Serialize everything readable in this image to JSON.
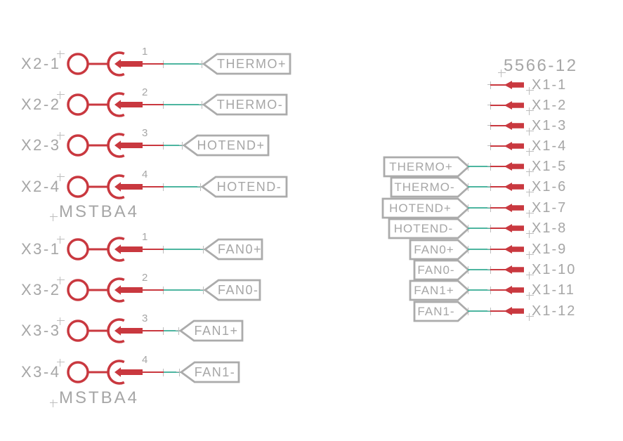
{
  "schematic": {
    "left_connectors": [
      {
        "part": "MSTBA4",
        "pins": [
          {
            "name": "X2-1",
            "number": "1",
            "net": "THERMO+"
          },
          {
            "name": "X2-2",
            "number": "2",
            "net": "THERMO-"
          },
          {
            "name": "X2-3",
            "number": "3",
            "net": "HOTEND+"
          },
          {
            "name": "X2-4",
            "number": "4",
            "net": "HOTEND-"
          }
        ]
      },
      {
        "part": "MSTBA4",
        "pins": [
          {
            "name": "X3-1",
            "number": "1",
            "net": "FAN0+"
          },
          {
            "name": "X3-2",
            "number": "2",
            "net": "FAN0-"
          },
          {
            "name": "X3-3",
            "number": "3",
            "net": "FAN1+"
          },
          {
            "name": "X3-4",
            "number": "4",
            "net": "FAN1-"
          }
        ]
      }
    ],
    "right_connector": {
      "part": "5566-12",
      "pins": [
        {
          "name": "X1-1",
          "net": ""
        },
        {
          "name": "X1-2",
          "net": ""
        },
        {
          "name": "X1-3",
          "net": ""
        },
        {
          "name": "X1-4",
          "net": ""
        },
        {
          "name": "X1-5",
          "net": "THERMO+"
        },
        {
          "name": "X1-6",
          "net": "THERMO-"
        },
        {
          "name": "X1-7",
          "net": "HOTEND+"
        },
        {
          "name": "X1-8",
          "net": "HOTEND-"
        },
        {
          "name": "X1-9",
          "net": "FAN0+"
        },
        {
          "name": "X1-10",
          "net": "FAN0-"
        },
        {
          "name": "X1-11",
          "net": "FAN1+"
        },
        {
          "name": "X1-12",
          "net": "FAN1-"
        }
      ]
    },
    "colors": {
      "symbol_red": "#C9383F",
      "net_teal": "#4DB5A0",
      "text_gray": "#A6A6A6",
      "outline_gray": "#ABABAB",
      "cross_gray": "#BDBDBD"
    }
  }
}
